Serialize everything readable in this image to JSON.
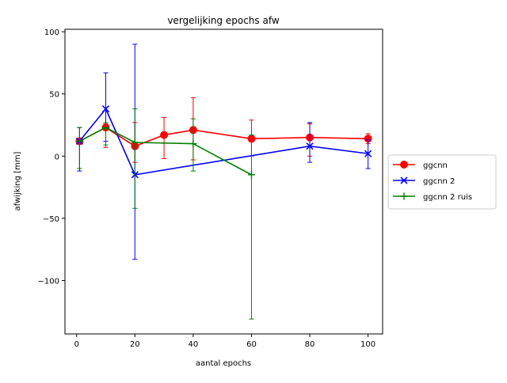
{
  "chart_data": {
    "type": "line",
    "title": "vergelijking epochs afw",
    "xlabel": "aantal epochs",
    "ylabel": "afwijking [mm]",
    "xlim": [
      -4,
      105
    ],
    "ylim": [
      -143,
      102
    ],
    "xticks": [
      0,
      20,
      40,
      60,
      80,
      100
    ],
    "yticks": [
      -100,
      -50,
      0,
      50,
      100
    ],
    "ytick_labels": [
      "−100",
      "−50",
      "0",
      "50",
      "100"
    ],
    "legend_position": "outside-right",
    "grid": false,
    "series": [
      {
        "name": "ggcnn",
        "color": "#ff0000",
        "marker": "circle",
        "x": [
          1,
          10,
          20,
          30,
          40,
          60,
          80,
          100
        ],
        "y": [
          12,
          23,
          8,
          17,
          21,
          14,
          15,
          14
        ],
        "err_low": [
          -10,
          7,
          -5,
          -2,
          -3,
          0,
          0,
          10
        ],
        "err_high": [
          23,
          26,
          27,
          31,
          47,
          29,
          26,
          18
        ]
      },
      {
        "name": "ggcnn 2",
        "color": "#0000ff",
        "marker": "x",
        "x": [
          1,
          10,
          20,
          80,
          100
        ],
        "y": [
          12,
          38,
          -15,
          8,
          2
        ],
        "err_low": [
          -12,
          12,
          -83,
          -5,
          -10
        ],
        "err_high": [
          23,
          67,
          90,
          27,
          13
        ]
      },
      {
        "name": "ggcnn 2 ruis",
        "color": "#008000",
        "marker": "plus",
        "x": [
          1,
          10,
          20,
          40,
          60
        ],
        "y": [
          12,
          23,
          11,
          10,
          -15
        ],
        "err_low": [
          -10,
          9,
          -42,
          -12,
          -131
        ],
        "err_high": [
          23,
          27,
          38,
          30,
          17
        ]
      }
    ]
  }
}
